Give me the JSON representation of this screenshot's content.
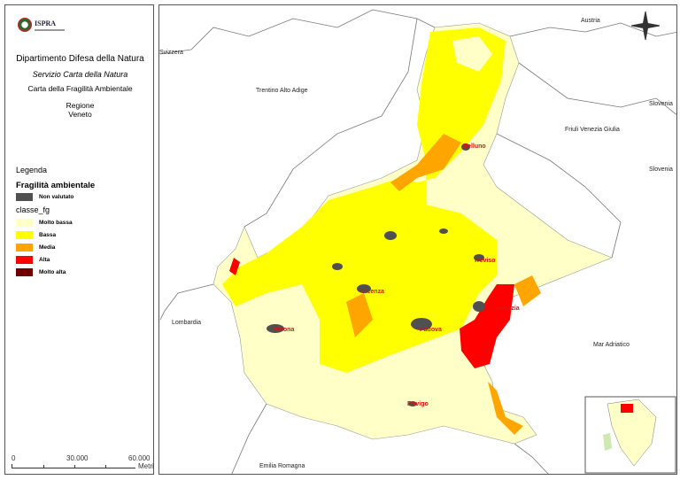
{
  "header": {
    "logo_text": "ISPRA",
    "department": "Dipartimento Difesa della Natura",
    "service": "Servizio Carta della Natura",
    "map_title": "Carta della Fragilità Ambientale",
    "region_label": "Regione",
    "region_name": "Veneto"
  },
  "legend": {
    "title": "Legenda",
    "layer_title": "Fragilità ambientale",
    "not_evaluated": {
      "label": "Non valutato",
      "color": "#505050"
    },
    "field_name": "classe_fg",
    "classes": [
      {
        "label": "Molto bassa",
        "color": "#ffffc8"
      },
      {
        "label": "Bassa",
        "color": "#ffff00"
      },
      {
        "label": "Media",
        "color": "#ffa500"
      },
      {
        "label": "Alta",
        "color": "#ff0000"
      },
      {
        "label": "Molto alta",
        "color": "#6e0000"
      }
    ]
  },
  "scale": {
    "ticks": [
      "0",
      "30.000",
      "60.000"
    ],
    "unit": "Metri"
  },
  "neighbors": [
    "Austria",
    "Svizzera",
    "Trentino Alto Adige",
    "Friuli Venezia Giulia",
    "Slovenia",
    "Slovenia",
    "Lombardia",
    "Mar Adriatico",
    "Emilia Romagna"
  ],
  "cities": [
    "Belluno",
    "Treviso",
    "Vicenza",
    "Venezia",
    "Verona",
    "Padova",
    "Rovigo"
  ]
}
